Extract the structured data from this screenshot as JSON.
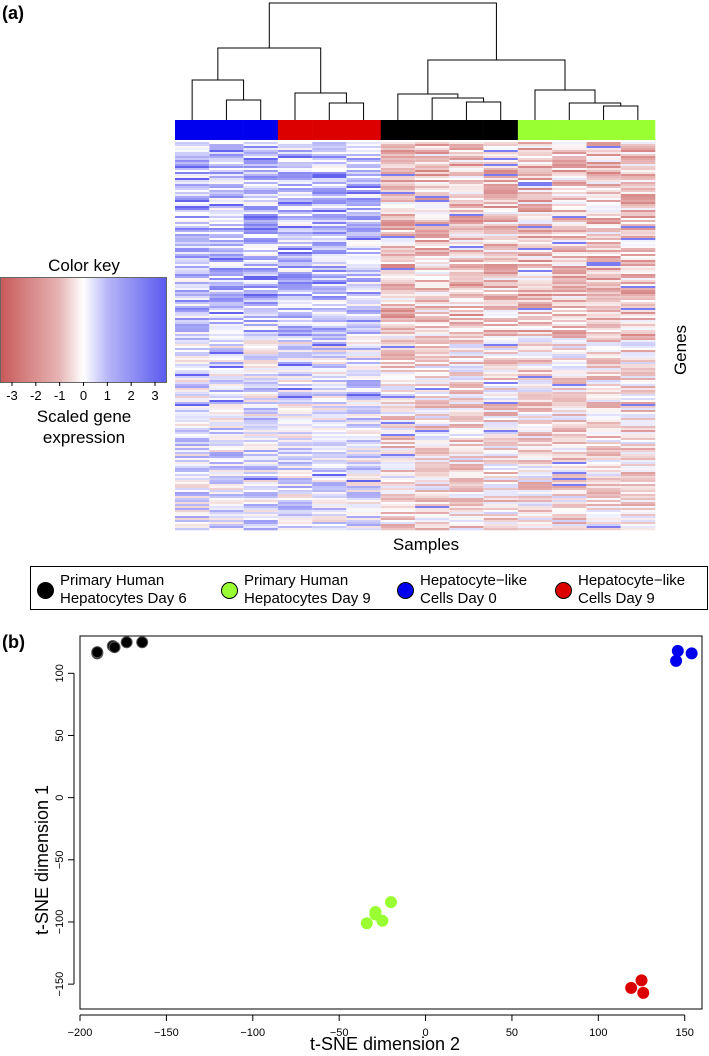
{
  "panel_a": {
    "label": "(a)",
    "color_key": {
      "title": "Color key",
      "ticks": [
        "-3",
        "-2",
        "-1",
        "0",
        "1",
        "2",
        "3"
      ],
      "caption_line1": "Scaled gene",
      "caption_line2": "expression",
      "low_color": "#c95a5a",
      "mid_color": "#ffffff",
      "high_color": "#5b5bef"
    },
    "x_axis_title": "Samples",
    "y_axis_title": "Genes",
    "column_groups": [
      "#0000ee",
      "#0000ee",
      "#0000ee",
      "#dd0000",
      "#dd0000",
      "#dd0000",
      "#000000",
      "#000000",
      "#000000",
      "#000000",
      "#99ff33",
      "#99ff33",
      "#99ff33",
      "#99ff33"
    ]
  },
  "legend": [
    {
      "line1": "Primary Human",
      "line2": "Hepatocytes Day 6",
      "color": "#000000"
    },
    {
      "line1": "Primary Human",
      "line2": "Hepatocytes Day 9",
      "color": "#99ff33"
    },
    {
      "line1": "Hepatocyte−like",
      "line2": "Cells Day 0",
      "color": "#0000ee"
    },
    {
      "line1": "Hepatocyte−like",
      "line2": "Cells Day 9",
      "color": "#dd0000"
    }
  ],
  "panel_b": {
    "label": "(b)"
  },
  "chart_data": {
    "type": "scatter",
    "title": "",
    "xlabel": "t-SNE dimension 2",
    "ylabel": "t-SNE dimension 1",
    "xlim": [
      -200,
      160
    ],
    "ylim": [
      -170,
      130
    ],
    "xticks": [
      -200,
      -150,
      -100,
      -50,
      0,
      50,
      100,
      150
    ],
    "yticks": [
      -150,
      -100,
      -50,
      0,
      50,
      100
    ],
    "grid": false,
    "legend_position": "top",
    "series": [
      {
        "name": "Primary Human Hepatocytes Day 6",
        "color": "#000000",
        "x": [
          -190,
          -181,
          -173,
          -164,
          -180,
          -190
        ],
        "y": [
          116,
          122,
          125,
          125,
          121,
          117
        ]
      },
      {
        "name": "Primary Human Hepatocytes Day 9",
        "color": "#99ff33",
        "x": [
          -34,
          -29,
          -25,
          -20,
          -29
        ],
        "y": [
          -101,
          -92,
          -99,
          -84,
          -94
        ]
      },
      {
        "name": "Hepatocyte−like Cells Day 0",
        "color": "#0000ee",
        "x": [
          145,
          146,
          154
        ],
        "y": [
          110,
          118,
          116
        ]
      },
      {
        "name": "Hepatocyte−like Cells Day 9",
        "color": "#dd0000",
        "x": [
          119,
          125,
          126
        ],
        "y": [
          -153,
          -147,
          -157
        ]
      }
    ]
  }
}
